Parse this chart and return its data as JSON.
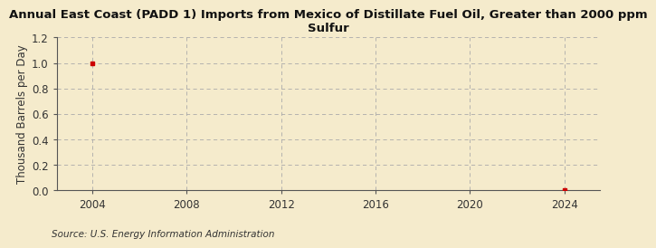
{
  "title": "Annual East Coast (PADD 1) Imports from Mexico of Distillate Fuel Oil, Greater than 2000 ppm\nSulfur",
  "ylabel": "Thousand Barrels per Day",
  "source": "Source: U.S. Energy Information Administration",
  "background_color": "#F5EBCC",
  "plot_bg_color": "#F5EBCC",
  "grid_color": "#AAAAAA",
  "data_points_x": [
    2004,
    2024
  ],
  "data_points_y": [
    1.0,
    0.0
  ],
  "marker_color": "#CC0000",
  "xlim": [
    2002.5,
    2025.5
  ],
  "ylim": [
    0.0,
    1.2
  ],
  "xticks": [
    2004,
    2008,
    2012,
    2016,
    2020,
    2024
  ],
  "yticks": [
    0.0,
    0.2,
    0.4,
    0.6,
    0.8,
    1.0,
    1.2
  ],
  "title_fontsize": 9.5,
  "label_fontsize": 8.5,
  "tick_fontsize": 8.5,
  "source_fontsize": 7.5
}
